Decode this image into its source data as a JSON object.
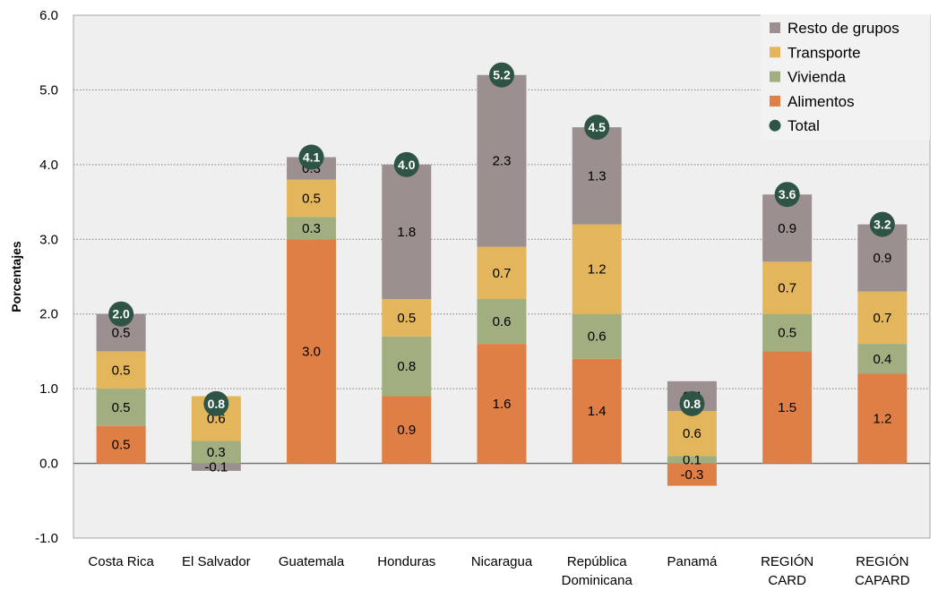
{
  "chart_data": {
    "type": "bar",
    "stacked": true,
    "categories": [
      [
        "Costa Rica"
      ],
      [
        "El Salvador"
      ],
      [
        "Guatemala"
      ],
      [
        "Honduras"
      ],
      [
        "Nicaragua"
      ],
      [
        "República",
        "Dominicana"
      ],
      [
        "Panamá"
      ],
      [
        "REGIÓN",
        "CARD"
      ],
      [
        "REGIÓN",
        "CAPARD"
      ]
    ],
    "series": [
      {
        "name": "Alimentos",
        "color": "#E07F45",
        "values": [
          0.5,
          0.0,
          3.0,
          0.9,
          1.6,
          1.4,
          -0.3,
          1.5,
          1.2
        ]
      },
      {
        "name": "Vivienda",
        "color": "#A0AE80",
        "values": [
          0.5,
          0.3,
          0.3,
          0.8,
          0.6,
          0.6,
          0.1,
          0.5,
          0.4
        ]
      },
      {
        "name": "Transporte",
        "color": "#E3B65C",
        "values": [
          0.5,
          0.6,
          0.5,
          0.5,
          0.7,
          1.2,
          0.6,
          0.7,
          0.7
        ]
      },
      {
        "name": "Resto de grupos",
        "color": "#9C8F8F",
        "values": [
          0.5,
          -0.1,
          0.3,
          1.8,
          2.3,
          1.3,
          0.4,
          0.9,
          0.9
        ]
      }
    ],
    "segment_labels": [
      [
        "0.5",
        "",
        "3.0",
        "0.9",
        "1.6",
        "1.4",
        "-0.3",
        "1.5",
        "1.2"
      ],
      [
        "0.5",
        "0.3",
        "0.3",
        "0.8",
        "0.6",
        "0.6",
        "0.1",
        "0.5",
        "0.4"
      ],
      [
        "0.5",
        "0.6",
        "0.5",
        "0.5",
        "0.7",
        "1.2",
        "0.6",
        "0.7",
        "0.7"
      ],
      [
        "0.5",
        "-0.1",
        "0.3",
        "1.8",
        "2.3",
        "1.3",
        "0.4",
        "0.9",
        "0.9"
      ]
    ],
    "total": {
      "name": "Total",
      "color": "#2E5446",
      "values": [
        2.0,
        0.8,
        4.1,
        4.0,
        5.2,
        4.5,
        0.8,
        3.6,
        3.2
      ],
      "labels": [
        "2.0",
        "0.8",
        "4.1",
        "4.0",
        "5.2",
        "4.5",
        "0.8",
        "3.6",
        "3.2"
      ]
    },
    "ylabel": "Porcentajes",
    "xlabel": "",
    "ylim": [
      -1.0,
      6.0
    ],
    "yticks": [
      "-1.0",
      "0.0",
      "1.0",
      "2.0",
      "3.0",
      "4.0",
      "5.0",
      "6.0"
    ],
    "grid": true,
    "legend": {
      "position": "top-right",
      "items": [
        "Resto de grupos",
        "Transporte",
        "Vivienda",
        "Alimentos",
        "Total"
      ]
    },
    "colors": {
      "plot_background": "#EFEFEF",
      "gridline": "#7F7F7F"
    }
  }
}
